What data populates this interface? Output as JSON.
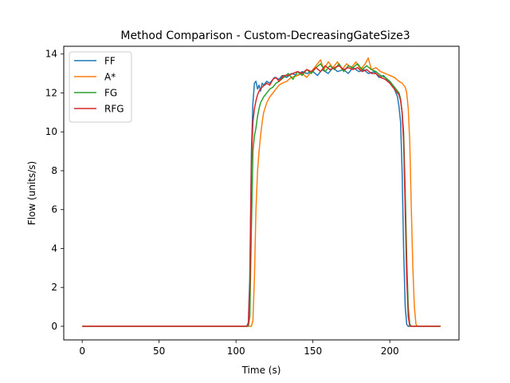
{
  "chart_data": {
    "type": "line",
    "title": "Method Comparison - Custom-DecreasingGateSize3",
    "xlabel": "Time (s)",
    "ylabel": "Flow (units/s)",
    "xlim": [
      -12,
      245
    ],
    "ylim": [
      -0.7,
      14.4
    ],
    "xticks": [
      0,
      50,
      100,
      150,
      200
    ],
    "yticks": [
      0,
      2,
      4,
      6,
      8,
      10,
      12,
      14
    ],
    "grid": false,
    "legend_position": "top-left",
    "series": [
      {
        "name": "FF",
        "color": "#1f77b4",
        "points": [
          [
            0,
            0
          ],
          [
            107,
            0
          ],
          [
            108,
            0.2
          ],
          [
            109,
            2.5
          ],
          [
            110,
            9.0
          ],
          [
            111,
            11.5
          ],
          [
            112,
            12.5
          ],
          [
            113,
            12.6
          ],
          [
            114,
            12.2
          ],
          [
            115,
            12.4
          ],
          [
            116,
            12.1
          ],
          [
            117,
            12.5
          ],
          [
            118,
            12.4
          ],
          [
            120,
            12.6
          ],
          [
            122,
            12.5
          ],
          [
            125,
            12.8
          ],
          [
            128,
            12.7
          ],
          [
            130,
            12.9
          ],
          [
            133,
            12.8
          ],
          [
            136,
            13.0
          ],
          [
            140,
            12.9
          ],
          [
            143,
            13.1
          ],
          [
            146,
            13.0
          ],
          [
            150,
            13.1
          ],
          [
            153,
            12.9
          ],
          [
            156,
            13.2
          ],
          [
            160,
            13.0
          ],
          [
            163,
            13.3
          ],
          [
            166,
            13.1
          ],
          [
            170,
            13.2
          ],
          [
            173,
            13.0
          ],
          [
            176,
            13.3
          ],
          [
            180,
            13.1
          ],
          [
            183,
            13.2
          ],
          [
            186,
            13.0
          ],
          [
            190,
            13.1
          ],
          [
            193,
            12.8
          ],
          [
            196,
            12.9
          ],
          [
            199,
            12.6
          ],
          [
            201,
            12.5
          ],
          [
            203,
            12.2
          ],
          [
            204,
            12.0
          ],
          [
            205,
            11.8
          ],
          [
            206,
            11.3
          ],
          [
            207,
            10.5
          ],
          [
            208,
            8.0
          ],
          [
            209,
            4.0
          ],
          [
            210,
            1.0
          ],
          [
            211,
            0.1
          ],
          [
            212,
            0
          ],
          [
            233,
            0
          ]
        ]
      },
      {
        "name": "A*",
        "color": "#ff7f0e",
        "points": [
          [
            0,
            0
          ],
          [
            110,
            0
          ],
          [
            111,
            0.3
          ],
          [
            112,
            2.5
          ],
          [
            113,
            6.0
          ],
          [
            114,
            8.0
          ],
          [
            115,
            9.0
          ],
          [
            116,
            9.8
          ],
          [
            117,
            10.5
          ],
          [
            118,
            11.0
          ],
          [
            120,
            11.5
          ],
          [
            122,
            11.8
          ],
          [
            124,
            12.0
          ],
          [
            126,
            12.2
          ],
          [
            128,
            12.4
          ],
          [
            130,
            12.5
          ],
          [
            133,
            12.6
          ],
          [
            136,
            12.8
          ],
          [
            140,
            12.9
          ],
          [
            143,
            13.0
          ],
          [
            146,
            12.8
          ],
          [
            150,
            13.2
          ],
          [
            153,
            13.5
          ],
          [
            155,
            13.7
          ],
          [
            157,
            13.2
          ],
          [
            160,
            13.6
          ],
          [
            163,
            13.3
          ],
          [
            166,
            13.6
          ],
          [
            169,
            13.2
          ],
          [
            172,
            13.5
          ],
          [
            175,
            13.3
          ],
          [
            178,
            13.6
          ],
          [
            181,
            13.2
          ],
          [
            184,
            13.5
          ],
          [
            186,
            13.8
          ],
          [
            188,
            13.2
          ],
          [
            191,
            13.3
          ],
          [
            194,
            13.1
          ],
          [
            197,
            13.0
          ],
          [
            200,
            12.9
          ],
          [
            203,
            12.8
          ],
          [
            206,
            12.6
          ],
          [
            208,
            12.5
          ],
          [
            210,
            12.3
          ],
          [
            211,
            12.0
          ],
          [
            212,
            11.2
          ],
          [
            213,
            9.5
          ],
          [
            214,
            6.0
          ],
          [
            215,
            3.0
          ],
          [
            216,
            1.0
          ],
          [
            217,
            0.1
          ],
          [
            218,
            0
          ],
          [
            233,
            0
          ]
        ]
      },
      {
        "name": "FG",
        "color": "#2ca02c",
        "points": [
          [
            0,
            0
          ],
          [
            108,
            0
          ],
          [
            109,
            0.5
          ],
          [
            110,
            5.0
          ],
          [
            111,
            9.0
          ],
          [
            112,
            9.8
          ],
          [
            113,
            10.2
          ],
          [
            114,
            10.8
          ],
          [
            115,
            11.2
          ],
          [
            116,
            11.5
          ],
          [
            118,
            11.8
          ],
          [
            120,
            12.0
          ],
          [
            122,
            12.2
          ],
          [
            124,
            12.3
          ],
          [
            126,
            12.5
          ],
          [
            128,
            12.6
          ],
          [
            131,
            12.8
          ],
          [
            134,
            13.0
          ],
          [
            137,
            12.7
          ],
          [
            140,
            13.1
          ],
          [
            143,
            12.9
          ],
          [
            146,
            13.2
          ],
          [
            149,
            13.0
          ],
          [
            152,
            13.3
          ],
          [
            155,
            13.5
          ],
          [
            158,
            13.1
          ],
          [
            161,
            13.4
          ],
          [
            164,
            13.2
          ],
          [
            167,
            13.5
          ],
          [
            170,
            13.1
          ],
          [
            173,
            13.4
          ],
          [
            176,
            13.3
          ],
          [
            179,
            13.5
          ],
          [
            182,
            13.2
          ],
          [
            185,
            13.4
          ],
          [
            188,
            13.2
          ],
          [
            191,
            13.1
          ],
          [
            194,
            12.9
          ],
          [
            197,
            12.8
          ],
          [
            200,
            12.6
          ],
          [
            202,
            12.4
          ],
          [
            204,
            12.2
          ],
          [
            206,
            12.0
          ],
          [
            207,
            11.7
          ],
          [
            208,
            11.0
          ],
          [
            209,
            10.0
          ],
          [
            210,
            7.0
          ],
          [
            211,
            3.5
          ],
          [
            212,
            1.0
          ],
          [
            213,
            0.1
          ],
          [
            214,
            0
          ],
          [
            233,
            0
          ]
        ]
      },
      {
        "name": "RFG",
        "color": "#d62728",
        "points": [
          [
            0,
            0
          ],
          [
            107,
            0
          ],
          [
            108,
            0.1
          ],
          [
            109,
            2.0
          ],
          [
            110,
            8.5
          ],
          [
            111,
            10.5
          ],
          [
            112,
            11.2
          ],
          [
            113,
            11.6
          ],
          [
            114,
            11.9
          ],
          [
            115,
            12.1
          ],
          [
            117,
            12.3
          ],
          [
            120,
            12.5
          ],
          [
            122,
            12.4
          ],
          [
            124,
            12.7
          ],
          [
            126,
            12.8
          ],
          [
            128,
            12.6
          ],
          [
            131,
            12.9
          ],
          [
            134,
            12.9
          ],
          [
            137,
            13.0
          ],
          [
            140,
            13.1
          ],
          [
            143,
            13.0
          ],
          [
            146,
            13.2
          ],
          [
            149,
            13.1
          ],
          [
            152,
            13.3
          ],
          [
            155,
            13.1
          ],
          [
            158,
            13.4
          ],
          [
            161,
            13.2
          ],
          [
            164,
            13.3
          ],
          [
            167,
            13.4
          ],
          [
            170,
            13.2
          ],
          [
            173,
            13.3
          ],
          [
            176,
            13.2
          ],
          [
            179,
            13.3
          ],
          [
            182,
            13.1
          ],
          [
            185,
            13.2
          ],
          [
            188,
            13.0
          ],
          [
            191,
            13.0
          ],
          [
            194,
            12.8
          ],
          [
            197,
            12.7
          ],
          [
            200,
            12.5
          ],
          [
            202,
            12.3
          ],
          [
            204,
            12.1
          ],
          [
            206,
            11.9
          ],
          [
            207,
            11.6
          ],
          [
            208,
            11.0
          ],
          [
            209,
            9.5
          ],
          [
            210,
            6.0
          ],
          [
            211,
            2.5
          ],
          [
            212,
            0.5
          ],
          [
            213,
            0
          ],
          [
            233,
            0
          ]
        ]
      }
    ]
  }
}
